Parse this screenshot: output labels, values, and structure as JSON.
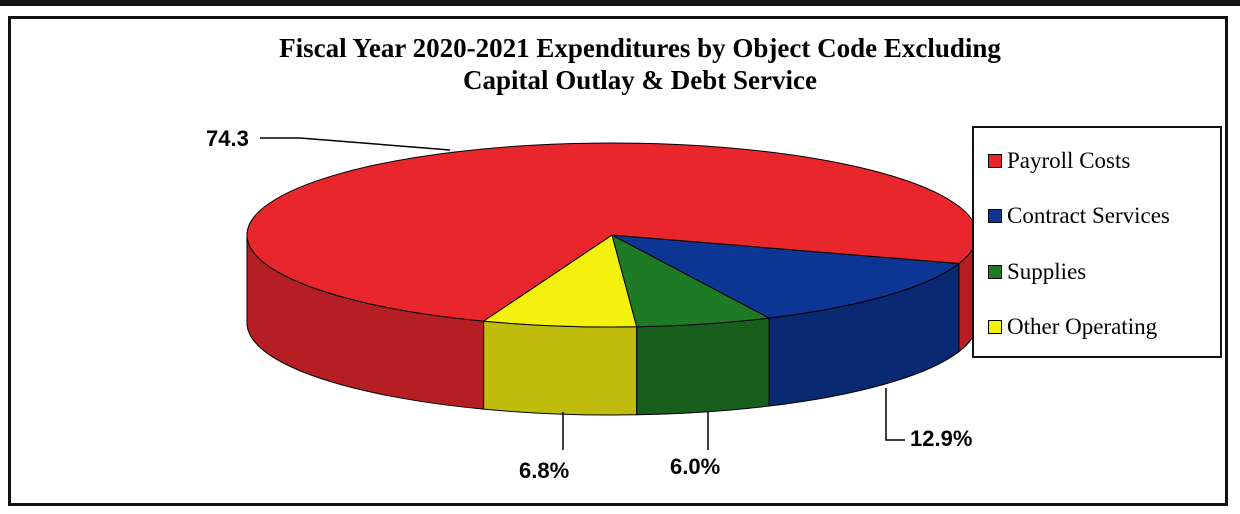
{
  "chart_data": {
    "type": "pie",
    "title_lines": [
      "Fiscal Year 2020-2021 Expenditures by Object Code Excluding",
      "Capital Outlay & Debt Service"
    ],
    "labels": [
      "Payroll Costs",
      "Contract Services",
      "Supplies",
      "Other Operating"
    ],
    "values": [
      74.3,
      12.9,
      6.0,
      6.8
    ],
    "data_labels": [
      "74.3",
      "12.9%",
      "6.0%",
      "6.8%"
    ],
    "colors": [
      "#e8262b",
      "#0d3594",
      "#1f7a25",
      "#f5f10f"
    ],
    "legend_position": "right",
    "style": "3d-pie"
  }
}
